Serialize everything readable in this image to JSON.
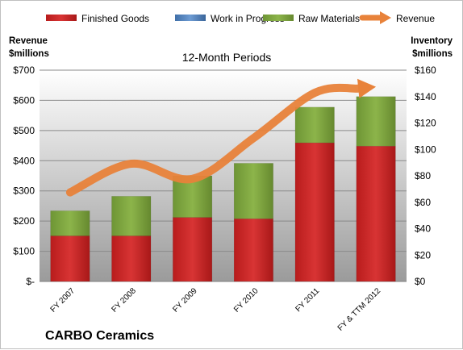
{
  "chart_data": {
    "type": "bar",
    "subtitle": "12-Month Periods",
    "company": "CARBO Ceramics",
    "left_axis_title": [
      "Revenue",
      "$millions"
    ],
    "right_axis_title": [
      "Inventory",
      "$millions"
    ],
    "categories": [
      "FY 2007",
      "FY 2008",
      "FY 2009",
      "FY 2010",
      "FY 2011",
      "FY & TTM 2012"
    ],
    "left_ylim": [
      0,
      700
    ],
    "left_ticks": [
      "$-",
      "$100",
      "$200",
      "$300",
      "$400",
      "$500",
      "$600",
      "$700"
    ],
    "right_ylim": [
      0,
      160
    ],
    "right_ticks": [
      "$0",
      "$20",
      "$40",
      "$60",
      "$80",
      "$100",
      "$120",
      "$140",
      "$160"
    ],
    "legend_position": "top",
    "grid": true,
    "series": [
      {
        "name": "Finished Goods",
        "axis": "right",
        "stack": true,
        "color": "#cc2a2a",
        "values": [
          34.5,
          34.5,
          48.5,
          47.5,
          105,
          102.5
        ]
      },
      {
        "name": "Work in Progress",
        "axis": "right",
        "stack": true,
        "color": "#4f81bd",
        "values": [
          0,
          0,
          0,
          0,
          0,
          0
        ]
      },
      {
        "name": "Raw Materials",
        "axis": "right",
        "stack": true,
        "color": "#7fa73f",
        "values": [
          19,
          30,
          31.5,
          42,
          27,
          37.5
        ]
      },
      {
        "name": "Revenue",
        "axis": "left",
        "type": "line",
        "color": "#e8823a",
        "values": [
          295,
          390,
          340,
          475,
          625,
          645
        ]
      }
    ]
  }
}
